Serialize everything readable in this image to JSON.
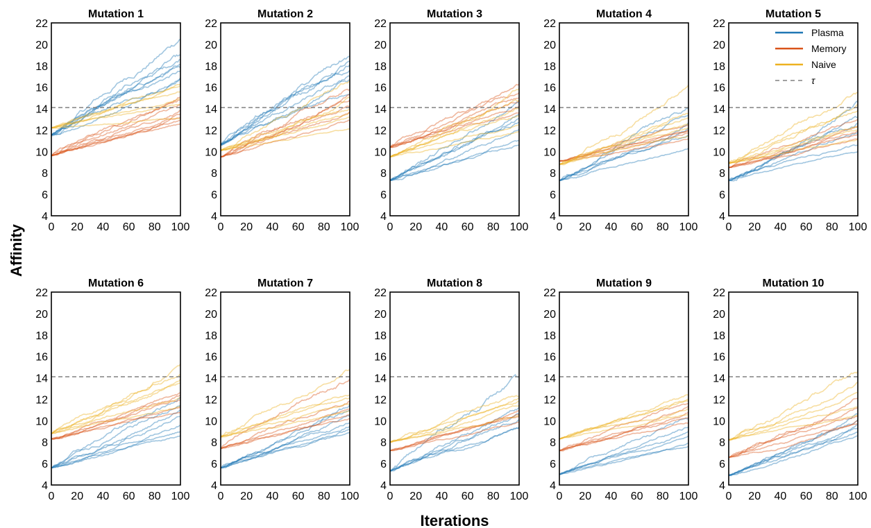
{
  "figure": {
    "xlabel": "Iterations",
    "ylabel": "Affinity"
  },
  "colors": {
    "Plasma": "#1f77b4",
    "Memory": "#d95319",
    "Naive": "#edb120",
    "threshold": "#808080"
  },
  "legend": {
    "placement": "top-right of Mutation 5 panel",
    "entries": [
      {
        "name": "Plasma",
        "style": "solid"
      },
      {
        "name": "Memory",
        "style": "solid"
      },
      {
        "name": "Naive",
        "style": "solid"
      },
      {
        "name": "τ",
        "style": "dashed"
      }
    ]
  },
  "chart_data": [
    {
      "type": "line",
      "title": "Mutation 1",
      "xlim": [
        0,
        100
      ],
      "ylim": [
        4,
        22
      ],
      "xticks": [
        0,
        20,
        40,
        60,
        80,
        100
      ],
      "yticks": [
        4,
        6,
        8,
        10,
        12,
        14,
        16,
        18,
        20,
        22
      ],
      "threshold": 14.1,
      "grid": false,
      "series": [
        {
          "name": "Plasma",
          "start": 11.5,
          "ends": [
            18.1,
            20.5,
            17.5,
            16.8,
            18.6,
            19.0,
            17.8,
            16.9
          ]
        },
        {
          "name": "Memory",
          "start": 9.6,
          "ends": [
            13.8,
            14.8,
            12.9,
            15.1,
            13.5,
            14.3,
            12.6,
            13.2
          ]
        },
        {
          "name": "Naive",
          "start": 12.2,
          "ends": [
            16.1,
            14.9,
            15.6,
            13.1,
            16.3,
            14.4
          ]
        }
      ]
    },
    {
      "type": "line",
      "title": "Mutation 2",
      "xlim": [
        0,
        100
      ],
      "ylim": [
        4,
        22
      ],
      "xticks": [
        0,
        20,
        40,
        60,
        80,
        100
      ],
      "yticks": [
        4,
        6,
        8,
        10,
        12,
        14,
        16,
        18,
        20,
        22
      ],
      "threshold": 14.1,
      "grid": false,
      "series": [
        {
          "name": "Plasma",
          "start": 10.6,
          "ends": [
            18.4,
            18.9,
            17.6,
            16.7,
            18.1,
            15.3,
            17.0
          ]
        },
        {
          "name": "Memory",
          "start": 9.5,
          "ends": [
            14.8,
            15.3,
            13.7,
            14.2,
            12.9,
            15.8
          ]
        },
        {
          "name": "Naive",
          "start": 10.1,
          "ends": [
            16.6,
            14.0,
            13.2,
            15.0,
            12.1,
            13.6
          ]
        }
      ]
    },
    {
      "type": "line",
      "title": "Mutation 3",
      "xlim": [
        0,
        100
      ],
      "ylim": [
        4,
        22
      ],
      "xticks": [
        0,
        20,
        40,
        60,
        80,
        100
      ],
      "yticks": [
        4,
        6,
        8,
        10,
        12,
        14,
        16,
        18,
        20,
        22
      ],
      "threshold": 14.1,
      "grid": false,
      "series": [
        {
          "name": "Plasma",
          "start": 7.3,
          "ends": [
            11.0,
            13.5,
            12.1,
            14.6,
            12.7,
            13.1,
            10.6
          ]
        },
        {
          "name": "Memory",
          "start": 10.4,
          "ends": [
            15.0,
            16.3,
            14.2,
            13.6,
            15.5,
            14.7
          ]
        },
        {
          "name": "Naive",
          "start": 9.5,
          "ends": [
            14.1,
            15.9,
            12.5,
            13.3,
            14.8,
            11.9
          ]
        }
      ]
    },
    {
      "type": "line",
      "title": "Mutation 4",
      "xlim": [
        0,
        100
      ],
      "ylim": [
        4,
        22
      ],
      "xticks": [
        0,
        20,
        40,
        60,
        80,
        100
      ],
      "yticks": [
        4,
        6,
        8,
        10,
        12,
        14,
        16,
        18,
        20,
        22
      ],
      "threshold": 14.1,
      "grid": false,
      "series": [
        {
          "name": "Plasma",
          "start": 7.3,
          "ends": [
            10.3,
            14.0,
            12.2,
            13.4,
            11.5,
            12.7
          ]
        },
        {
          "name": "Memory",
          "start": 9.1,
          "ends": [
            11.7,
            12.0,
            11.2,
            12.5,
            11.9
          ]
        },
        {
          "name": "Naive",
          "start": 8.8,
          "ends": [
            16.2,
            13.1,
            12.6,
            11.4,
            13.5,
            12.2
          ]
        }
      ]
    },
    {
      "type": "line",
      "title": "Mutation 5",
      "xlim": [
        0,
        100
      ],
      "ylim": [
        4,
        22
      ],
      "xticks": [
        0,
        20,
        40,
        60,
        80,
        100
      ],
      "yticks": [
        4,
        6,
        8,
        10,
        12,
        14,
        16,
        18,
        20,
        22
      ],
      "threshold": 14.1,
      "grid": false,
      "series": [
        {
          "name": "Plasma",
          "start": 7.3,
          "ends": [
            10.6,
            14.6,
            13.2,
            10.0,
            11.8,
            12.6
          ]
        },
        {
          "name": "Memory",
          "start": 8.5,
          "ends": [
            11.9,
            12.4,
            11.2,
            13.0,
            11.6
          ]
        },
        {
          "name": "Naive",
          "start": 8.9,
          "ends": [
            15.5,
            13.8,
            12.3,
            14.4,
            12.0,
            11.1
          ]
        }
      ]
    },
    {
      "type": "line",
      "title": "Mutation 6",
      "xlim": [
        0,
        100
      ],
      "ylim": [
        4,
        22
      ],
      "xticks": [
        0,
        20,
        40,
        60,
        80,
        100
      ],
      "yticks": [
        4,
        6,
        8,
        10,
        12,
        14,
        16,
        18,
        20,
        22
      ],
      "threshold": 14.1,
      "grid": false,
      "series": [
        {
          "name": "Plasma",
          "start": 5.6,
          "ends": [
            10.4,
            12.2,
            9.0,
            11.4,
            8.6,
            9.6,
            11.0
          ]
        },
        {
          "name": "Memory",
          "start": 8.3,
          "ends": [
            12.4,
            11.2,
            11.9,
            12.6,
            10.8
          ]
        },
        {
          "name": "Naive",
          "start": 8.8,
          "ends": [
            15.3,
            14.3,
            13.5,
            12.1,
            11.3,
            13.9
          ]
        }
      ]
    },
    {
      "type": "line",
      "title": "Mutation 7",
      "xlim": [
        0,
        100
      ],
      "ylim": [
        4,
        22
      ],
      "xticks": [
        0,
        20,
        40,
        60,
        80,
        100
      ],
      "yticks": [
        4,
        6,
        8,
        10,
        12,
        14,
        16,
        18,
        20,
        22
      ],
      "threshold": 14.1,
      "grid": false,
      "series": [
        {
          "name": "Plasma",
          "start": 5.6,
          "ends": [
            9.8,
            11.5,
            8.9,
            10.4,
            9.2,
            11.0,
            9.5
          ]
        },
        {
          "name": "Memory",
          "start": 7.4,
          "ends": [
            11.1,
            13.9,
            10.6,
            11.8,
            10.2
          ]
        },
        {
          "name": "Naive",
          "start": 8.5,
          "ends": [
            14.8,
            12.4,
            11.6,
            12.1,
            10.9
          ]
        }
      ]
    },
    {
      "type": "line",
      "title": "Mutation 8",
      "xlim": [
        0,
        100
      ],
      "ylim": [
        4,
        22
      ],
      "xticks": [
        0,
        20,
        40,
        60,
        80,
        100
      ],
      "yticks": [
        4,
        6,
        8,
        10,
        12,
        14,
        16,
        18,
        20,
        22
      ],
      "threshold": 14.1,
      "grid": false,
      "series": [
        {
          "name": "Plasma",
          "start": 5.3,
          "ends": [
            14.1,
            10.6,
            11.2,
            9.4,
            10.1,
            9.3
          ]
        },
        {
          "name": "Memory",
          "start": 7.2,
          "ends": [
            10.4,
            10.9,
            9.9,
            10.6
          ]
        },
        {
          "name": "Naive",
          "start": 8.0,
          "ends": [
            12.3,
            11.8,
            12.1,
            10.5,
            11.4
          ]
        }
      ]
    },
    {
      "type": "line",
      "title": "Mutation 9",
      "xlim": [
        0,
        100
      ],
      "ylim": [
        4,
        22
      ],
      "xticks": [
        0,
        20,
        40,
        60,
        80,
        100
      ],
      "yticks": [
        4,
        6,
        8,
        10,
        12,
        14,
        16,
        18,
        20,
        22
      ],
      "threshold": 14.1,
      "grid": false,
      "series": [
        {
          "name": "Plasma",
          "start": 5.0,
          "ends": [
            9.4,
            7.9,
            8.6,
            10.2,
            9.0,
            7.6
          ]
        },
        {
          "name": "Memory",
          "start": 7.2,
          "ends": [
            10.3,
            11.3,
            9.8,
            10.8,
            11.6
          ]
        },
        {
          "name": "Naive",
          "start": 8.3,
          "ends": [
            12.4,
            11.1,
            11.9,
            10.6,
            12.0
          ]
        }
      ]
    },
    {
      "type": "line",
      "title": "Mutation 10",
      "xlim": [
        0,
        100
      ],
      "ylim": [
        4,
        22
      ],
      "xticks": [
        0,
        20,
        40,
        60,
        80,
        100
      ],
      "yticks": [
        4,
        6,
        8,
        10,
        12,
        14,
        16,
        18,
        20,
        22
      ],
      "threshold": 14.1,
      "grid": false,
      "series": [
        {
          "name": "Plasma",
          "start": 4.9,
          "ends": [
            9.6,
            8.6,
            10.1,
            8.9,
            9.3,
            10.6
          ]
        },
        {
          "name": "Memory",
          "start": 6.6,
          "ends": [
            10.4,
            12.1,
            9.7,
            11.2,
            10.0
          ]
        },
        {
          "name": "Naive",
          "start": 8.2,
          "ends": [
            14.6,
            13.6,
            12.6,
            10.5,
            11.3
          ]
        }
      ]
    }
  ]
}
